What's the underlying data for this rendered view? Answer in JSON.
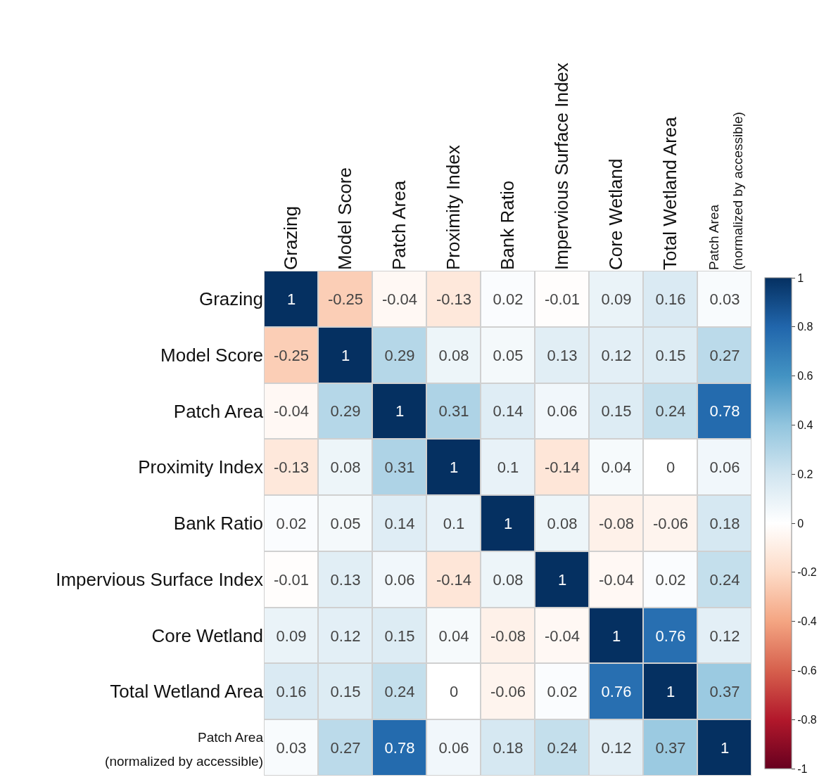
{
  "chart_data": {
    "type": "heatmap",
    "categories": [
      "Grazing",
      "Model Score",
      "Patch Area",
      "Proximity Index",
      "Bank Ratio",
      "Impervious Surface Index",
      "Core Wetland",
      "Total Wetland Area",
      "Patch Area\n(normalized by accessible)"
    ],
    "y_categories": [
      "Grazing",
      "Model Score",
      "Patch Area",
      "Proximity Index",
      "Bank Ratio",
      "Impervious Surface Index",
      "Core Wetland",
      "Total Wetland Area",
      "Patch Area\n(normalized by accessible)"
    ],
    "cells": [
      [
        1,
        -0.25,
        -0.04,
        -0.13,
        0.02,
        -0.01,
        0.09,
        0.16,
        0.03
      ],
      [
        -0.25,
        1,
        0.29,
        0.08,
        0.05,
        0.13,
        0.12,
        0.15,
        0.27
      ],
      [
        -0.04,
        0.29,
        1,
        0.31,
        0.14,
        0.06,
        0.15,
        0.24,
        0.78
      ],
      [
        -0.13,
        0.08,
        0.31,
        1,
        0.1,
        -0.14,
        0.04,
        0,
        0.06
      ],
      [
        0.02,
        0.05,
        0.14,
        0.1,
        1,
        0.08,
        -0.08,
        -0.06,
        0.18
      ],
      [
        -0.01,
        0.13,
        0.06,
        -0.14,
        0.08,
        1,
        -0.04,
        0.02,
        0.24
      ],
      [
        0.09,
        0.12,
        0.15,
        0.04,
        -0.08,
        -0.04,
        1,
        0.76,
        0.12
      ],
      [
        0.16,
        0.15,
        0.24,
        0,
        -0.06,
        0.02,
        0.76,
        1,
        0.37
      ],
      [
        0.03,
        0.27,
        0.78,
        0.06,
        0.18,
        0.24,
        0.12,
        0.37,
        1
      ]
    ],
    "clim": [
      -1,
      1
    ],
    "cticks": [
      -1,
      -0.8,
      -0.6,
      -0.4,
      -0.2,
      0,
      0.2,
      0.4,
      0.6,
      0.8,
      1
    ],
    "data_labels": true
  }
}
